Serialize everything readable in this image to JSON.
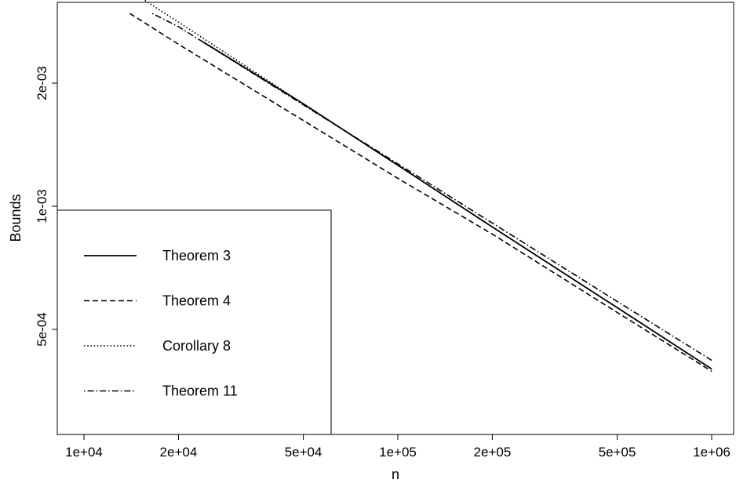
{
  "chart_data": {
    "type": "line",
    "title": "",
    "xlabel": "n",
    "ylabel": "Bounds",
    "xscale": "log",
    "yscale": "log",
    "xlim": [
      8500,
      1080000
    ],
    "ylim": [
      0.000245,
      0.00431
    ],
    "grid": false,
    "legend_position": "bottom-left",
    "x_ticks": [
      {
        "value": 10000,
        "label": "1e+04"
      },
      {
        "value": 20000,
        "label": "2e+04"
      },
      {
        "value": 50000,
        "label": "5e+04"
      },
      {
        "value": 100000,
        "label": "1e+05"
      },
      {
        "value": 200000,
        "label": "2e+05"
      },
      {
        "value": 500000,
        "label": "5e+05"
      },
      {
        "value": 1000000,
        "label": "1e+06"
      }
    ],
    "y_ticks": [
      {
        "value": 0.0005,
        "label": "5e-04"
      },
      {
        "value": 0.001,
        "label": "1e-03"
      },
      {
        "value": 0.002,
        "label": "2e-03"
      }
    ],
    "series": [
      {
        "name": "Theorem 3",
        "style": "solid",
        "color": "#000000",
        "x": [
          24000,
          50000,
          100000,
          200000,
          500000,
          1000000
        ],
        "y": [
          0.00252,
          0.00178,
          0.00126,
          0.00089,
          0.000565,
          0.0004
        ]
      },
      {
        "name": "Theorem 4",
        "style": "dashed",
        "color": "#000000",
        "x": [
          14000,
          20000,
          50000,
          100000,
          200000,
          500000,
          1000000
        ],
        "y": [
          0.00296,
          0.00249,
          0.00162,
          0.00117,
          0.000855,
          0.00055,
          0.000395
        ]
      },
      {
        "name": "Corollary 8",
        "style": "dotted",
        "color": "#000000",
        "x": [
          8500,
          20000,
          50000,
          100000,
          200000,
          500000,
          1000000
        ],
        "y": [
          0.00431,
          0.00282,
          0.00178,
          0.00126,
          0.00089,
          0.000565,
          0.0004
        ]
      },
      {
        "name": "Theorem 11",
        "style": "dotdash",
        "color": "#000000",
        "x": [
          16500,
          20000,
          50000,
          100000,
          200000,
          500000,
          1000000
        ],
        "y": [
          0.00296,
          0.00275,
          0.00177,
          0.00127,
          0.00091,
          0.000585,
          0.00042
        ]
      }
    ]
  }
}
